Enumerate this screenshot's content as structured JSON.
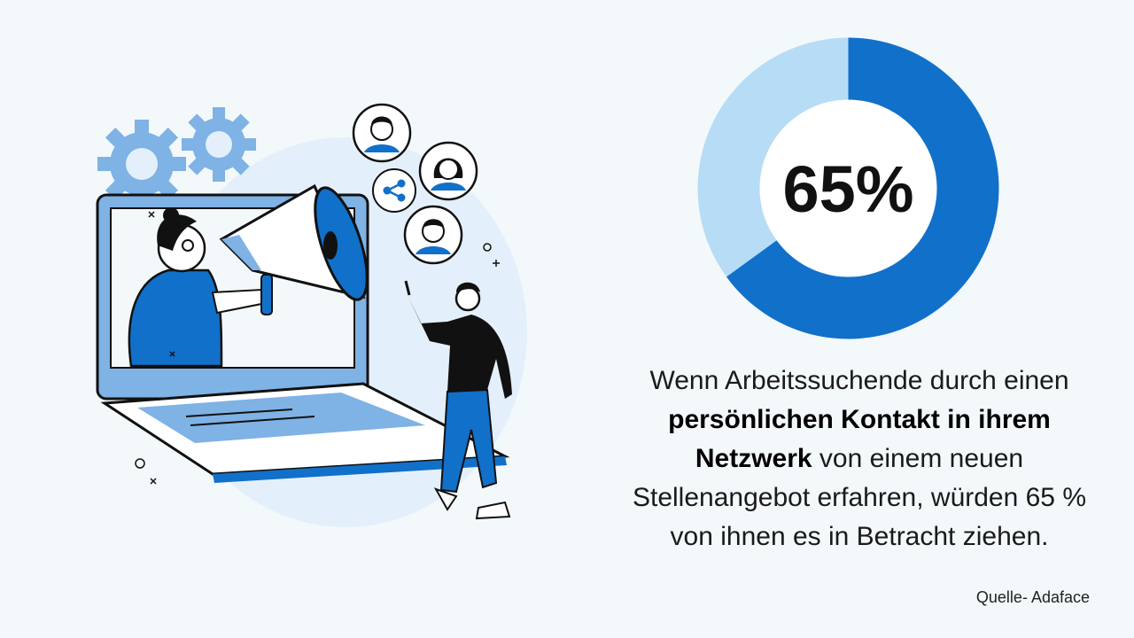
{
  "chart_data": {
    "type": "pie",
    "variant": "donut",
    "center_label": "65%",
    "slices": [
      {
        "value": 65,
        "color": "#1170c9"
      },
      {
        "value": 35,
        "color": "#b7dcf6"
      }
    ]
  },
  "description": {
    "part1": "Wenn Arbeitssuchende durch einen ",
    "bold": "persönlichen Kontakt in ihrem Netzwerk",
    "part2": " von einem neuen Stellenangebot erfahren, würden 65 % von ihnen es in Betracht ziehen."
  },
  "source": "Quelle- Adaface",
  "colors": {
    "primary": "#1170c9",
    "light": "#b7dcf6",
    "mid": "#7fb2e5",
    "background": "#f3f8fb"
  },
  "illustration": {
    "icons": [
      "gear-icon",
      "gear-icon",
      "megaphone-icon",
      "share-icon",
      "avatar-icon",
      "avatar-icon",
      "avatar-icon",
      "laptop-icon"
    ]
  }
}
